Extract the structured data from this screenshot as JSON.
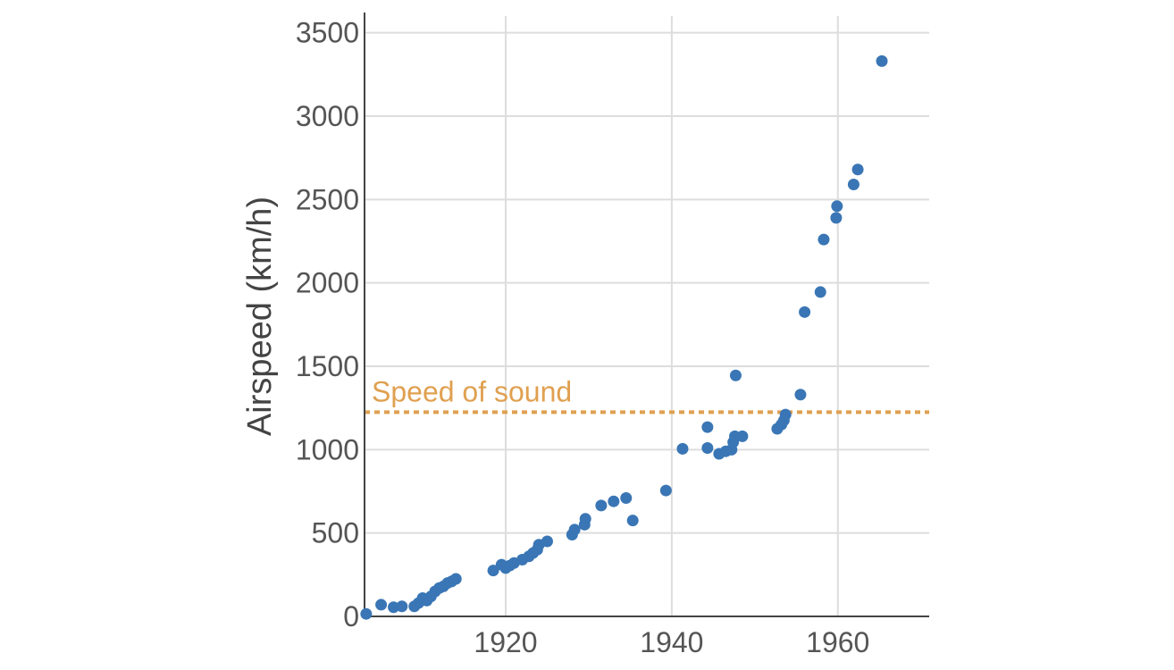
{
  "chart_data": {
    "type": "scatter",
    "title": "",
    "xlabel": "",
    "ylabel": "Airspeed (km/h)",
    "xlim": [
      1903,
      1971
    ],
    "ylim": [
      0,
      3600
    ],
    "xticks": [
      1920,
      1940,
      1960
    ],
    "yticks": [
      0,
      500,
      1000,
      1500,
      2000,
      2500,
      3000,
      3500
    ],
    "grid": true,
    "legend": "none",
    "colors": {
      "points": "#3a76b5",
      "reference": "#e0a050",
      "grid": "#dddddd",
      "axis": "#444444"
    },
    "reference_line": {
      "label": "Speed of sound",
      "y": 1225,
      "style": "dotted"
    },
    "series": [
      {
        "points": [
          {
            "x": 1903.2,
            "y": 15
          },
          {
            "x": 1905.0,
            "y": 70
          },
          {
            "x": 1906.5,
            "y": 55
          },
          {
            "x": 1907.5,
            "y": 60
          },
          {
            "x": 1909.0,
            "y": 60
          },
          {
            "x": 1909.5,
            "y": 80
          },
          {
            "x": 1910.0,
            "y": 110
          },
          {
            "x": 1910.5,
            "y": 95
          },
          {
            "x": 1911.0,
            "y": 120
          },
          {
            "x": 1911.5,
            "y": 150
          },
          {
            "x": 1912.0,
            "y": 170
          },
          {
            "x": 1912.5,
            "y": 180
          },
          {
            "x": 1913.0,
            "y": 200
          },
          {
            "x": 1913.5,
            "y": 210
          },
          {
            "x": 1914.0,
            "y": 225
          },
          {
            "x": 1918.5,
            "y": 275
          },
          {
            "x": 1919.5,
            "y": 310
          },
          {
            "x": 1920.0,
            "y": 290
          },
          {
            "x": 1920.5,
            "y": 305
          },
          {
            "x": 1921.0,
            "y": 320
          },
          {
            "x": 1922.0,
            "y": 340
          },
          {
            "x": 1922.8,
            "y": 360
          },
          {
            "x": 1923.3,
            "y": 380
          },
          {
            "x": 1923.8,
            "y": 400
          },
          {
            "x": 1924.0,
            "y": 430
          },
          {
            "x": 1925.0,
            "y": 450
          },
          {
            "x": 1928.0,
            "y": 490
          },
          {
            "x": 1928.3,
            "y": 520
          },
          {
            "x": 1929.5,
            "y": 550
          },
          {
            "x": 1929.6,
            "y": 585
          },
          {
            "x": 1931.5,
            "y": 665
          },
          {
            "x": 1933.0,
            "y": 690
          },
          {
            "x": 1934.5,
            "y": 710
          },
          {
            "x": 1935.3,
            "y": 575
          },
          {
            "x": 1939.3,
            "y": 755
          },
          {
            "x": 1941.3,
            "y": 1005
          },
          {
            "x": 1944.3,
            "y": 1010
          },
          {
            "x": 1944.3,
            "y": 1135
          },
          {
            "x": 1945.7,
            "y": 975
          },
          {
            "x": 1946.5,
            "y": 990
          },
          {
            "x": 1947.2,
            "y": 1000
          },
          {
            "x": 1947.4,
            "y": 1045
          },
          {
            "x": 1947.6,
            "y": 1080
          },
          {
            "x": 1947.7,
            "y": 1445
          },
          {
            "x": 1948.5,
            "y": 1080
          },
          {
            "x": 1952.7,
            "y": 1125
          },
          {
            "x": 1953.2,
            "y": 1150
          },
          {
            "x": 1953.5,
            "y": 1175
          },
          {
            "x": 1953.7,
            "y": 1210
          },
          {
            "x": 1955.5,
            "y": 1330
          },
          {
            "x": 1956.0,
            "y": 1825
          },
          {
            "x": 1957.9,
            "y": 1945
          },
          {
            "x": 1958.3,
            "y": 2260
          },
          {
            "x": 1959.8,
            "y": 2390
          },
          {
            "x": 1959.9,
            "y": 2460
          },
          {
            "x": 1961.9,
            "y": 2590
          },
          {
            "x": 1962.4,
            "y": 2680
          },
          {
            "x": 1965.3,
            "y": 3330
          }
        ]
      }
    ]
  }
}
